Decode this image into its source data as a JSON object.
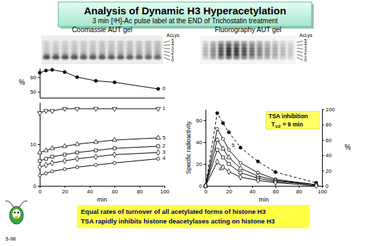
{
  "header": {
    "title": "Analysis of Dynamic H3 Hyperacetylation",
    "subtitle": "3 min [³H]-Ac pulse label at the END of Trichostatin treatment"
  },
  "panels": [
    {
      "title": "Coomassie AUT gel",
      "marker_title": "AcLys",
      "levels": [
        "5",
        "4",
        "3",
        "2",
        "1",
        "0"
      ]
    },
    {
      "title": "Fluorography AUT gel",
      "marker_title": "AcLys",
      "levels": [
        "5",
        "4",
        "3",
        "2",
        "1",
        "0"
      ]
    }
  ],
  "chart_data": [
    {
      "type": "line",
      "y_label": "%",
      "x": [
        0,
        5,
        10,
        20,
        30,
        45,
        60,
        95
      ],
      "xlim": [
        0,
        100
      ],
      "ylim": [
        46,
        66
      ],
      "yticks": [
        50,
        60
      ],
      "tick_labels": "y",
      "series": [
        {
          "name": "0",
          "color": "#000000",
          "marker": "filled-circle",
          "line_style": "solid",
          "values": [
            63,
            64.5,
            65,
            63.5,
            60,
            57.5,
            56.5,
            52
          ]
        }
      ]
    },
    {
      "type": "line",
      "x_label": "min",
      "x": [
        0,
        5,
        10,
        20,
        30,
        45,
        60,
        95
      ],
      "xlim": [
        0,
        100
      ],
      "xticks": [
        0,
        20,
        40,
        60,
        80,
        100
      ],
      "ylim": [
        0,
        20
      ],
      "yticks": [
        0,
        10
      ],
      "series": [
        {
          "name": "1",
          "color": "#000000",
          "marker": "triangle-down",
          "line_style": "solid",
          "values": [
            17.5,
            18,
            18,
            18.5,
            18.5,
            18.5,
            18.5,
            18.5
          ]
        },
        {
          "name": "5",
          "color": "#000000",
          "marker": "open-triangle",
          "line_style": "solid",
          "values": [
            8,
            8.5,
            9,
            9.5,
            10,
            10.5,
            11,
            11.5
          ]
        },
        {
          "name": "2",
          "color": "#000000",
          "marker": "open-square",
          "line_style": "solid",
          "values": [
            6,
            6.5,
            7,
            7.5,
            8,
            8.5,
            9,
            9.5
          ]
        },
        {
          "name": "3",
          "color": "#000000",
          "marker": "open-diamond",
          "line_style": "solid",
          "values": [
            4.5,
            5,
            5.5,
            6,
            6.5,
            7,
            7.5,
            8
          ]
        },
        {
          "name": "4",
          "color": "#000000",
          "marker": "open-circle",
          "line_style": "solid",
          "values": [
            2.5,
            3,
            3.5,
            4,
            4.5,
            5,
            5.5,
            6.5
          ]
        }
      ]
    },
    {
      "type": "line",
      "x_label": "min",
      "y_label": "Specific radioactivity",
      "y2_label": "%",
      "x": [
        0,
        10,
        15,
        20,
        30,
        45,
        60,
        95
      ],
      "xlim": [
        0,
        100
      ],
      "xticks": [
        0,
        20,
        40,
        60,
        80,
        100
      ],
      "ylim": [
        0,
        70
      ],
      "yticks": [
        0,
        20,
        40,
        60
      ],
      "y2lim": [
        0,
        100
      ],
      "y2ticks": [
        0,
        20,
        40,
        60,
        80,
        100
      ],
      "annotation": {
        "title": "TSA inhibition",
        "symbol": "T",
        "subscript": "1/2",
        "text": "= 9 min"
      },
      "series": [
        {
          "color": "#000000",
          "marker": "filled-circle",
          "line_style": "dashed",
          "axis": "y2",
          "values": [
            0,
            95,
            82,
            70,
            50,
            32,
            18,
            4
          ]
        },
        {
          "name": "5",
          "color": "#000000",
          "marker": "open-circle",
          "line_style": "solid",
          "values": [
            0,
            52,
            43,
            33,
            21,
            12,
            6,
            1
          ]
        },
        {
          "color": "#000000",
          "marker": "open-triangle",
          "line_style": "solid",
          "values": [
            0,
            42,
            34,
            26,
            16,
            9,
            5,
            1
          ]
        },
        {
          "color": "#000000",
          "marker": "open-square",
          "line_style": "solid",
          "values": [
            0,
            33,
            26,
            20,
            12,
            7,
            4,
            1
          ]
        },
        {
          "name": "4",
          "color": "#000000",
          "marker": "open-diamond",
          "line_style": "solid",
          "values": [
            0,
            22,
            17,
            13,
            8,
            5,
            3,
            0
          ]
        }
      ]
    }
  ],
  "footer": {
    "lines": [
      "Equal rates of turnover of all acetylated forms of histone H3",
      "TSA rapidly inhibits histone deacetylases acting on histone H3"
    ],
    "slide_number": "5-98"
  }
}
